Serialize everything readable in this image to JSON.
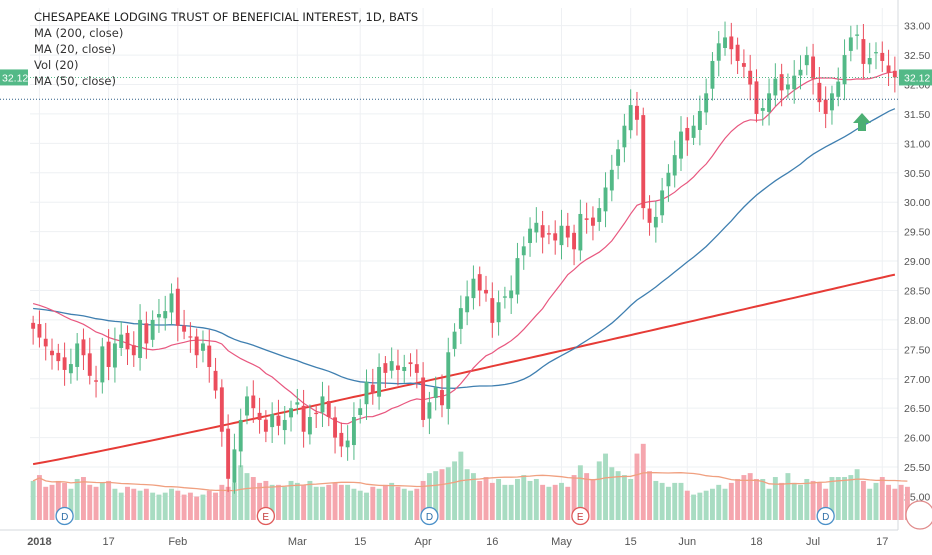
{
  "legend": {
    "title": "CHESAPEAKE LODGING TRUST OF BENEFICIAL INTEREST, 1D, BATS",
    "ma200": "MA (200, close)",
    "ma20": "MA (20, close)",
    "vol": "Vol (20)",
    "ma50": "MA (50, close)"
  },
  "price_tag": "32.12",
  "colors": {
    "up": "#53b987",
    "down": "#eb4d5c",
    "up_vol": "#a8dcc2",
    "down_vol": "#f5a6ae",
    "ma200": "#e63b36",
    "ma20": "#e8577f",
    "ma50": "#3f7fb0",
    "vol_ma": "#f0a080",
    "price_tag": "#53b987",
    "arrow": "#4caf73"
  },
  "chart_data": {
    "type": "candlestick",
    "title": "CHESAPEAKE LODGING TRUST OF BENEFICIAL INTEREST, 1D, BATS",
    "y_ticks": [
      "33.00",
      "32.50",
      "32.00",
      "31.50",
      "31.00",
      "30.50",
      "30.00",
      "29.50",
      "29.00",
      "28.50",
      "28.00",
      "27.50",
      "27.00",
      "26.50",
      "26.00",
      "25.50",
      "25.00"
    ],
    "ylim": [
      24.6,
      33.3
    ],
    "x_labels": [
      "2018",
      "17",
      "Feb",
      "Mar",
      "15",
      "Apr",
      "16",
      "May",
      "15",
      "Jun",
      "18",
      "Jul",
      "17"
    ],
    "x_label_sessions": [
      1,
      12,
      23,
      42,
      52,
      62,
      73,
      84,
      95,
      104,
      115,
      124,
      135
    ],
    "start_date": "2017-12-26",
    "last_price": 32.12,
    "event_markers": [
      {
        "letter": "D",
        "session": 5
      },
      {
        "letter": "E",
        "session": 37
      },
      {
        "letter": "D",
        "session": 63
      },
      {
        "letter": "E",
        "session": 87
      },
      {
        "letter": "D",
        "session": 126
      }
    ],
    "closes": [
      27.85,
      27.7,
      27.55,
      27.4,
      27.3,
      27.15,
      27.25,
      27.6,
      27.4,
      27.05,
      26.95,
      27.55,
      27.2,
      27.6,
      27.75,
      27.5,
      27.4,
      28.0,
      27.6,
      28.0,
      28.1,
      28.15,
      28.45,
      27.9,
      27.8,
      27.7,
      27.4,
      27.6,
      27.2,
      26.8,
      26.1,
      25.3,
      25.8,
      26.3,
      26.7,
      26.5,
      26.3,
      26.1,
      26.4,
      26.2,
      26.3,
      26.5,
      26.6,
      26.1,
      26.35,
      26.4,
      26.7,
      26.35,
      26.0,
      25.85,
      25.95,
      26.35,
      26.5,
      26.95,
      26.75,
      27.2,
      27.1,
      27.3,
      27.15,
      27.2,
      27.25,
      27.1,
      26.3,
      26.6,
      26.85,
      26.55,
      27.45,
      27.8,
      28.2,
      28.4,
      28.7,
      28.5,
      28.45,
      27.95,
      28.3,
      28.4,
      28.5,
      29.05,
      29.25,
      29.55,
      29.65,
      29.4,
      29.45,
      29.35,
      29.6,
      29.4,
      29.2,
      29.8,
      29.7,
      29.6,
      29.9,
      30.25,
      30.55,
      30.9,
      31.3,
      31.65,
      31.4,
      29.9,
      29.65,
      29.75,
      30.2,
      30.5,
      30.8,
      31.2,
      31.05,
      31.3,
      31.55,
      31.85,
      32.4,
      32.7,
      32.8,
      32.6,
      32.4,
      32.3,
      32.0,
      31.5,
      31.6,
      31.85,
      32.1,
      31.9,
      32.0,
      32.15,
      32.25,
      32.5,
      32.1,
      31.7,
      31.5,
      31.85,
      32.05,
      32.5,
      32.8,
      32.85,
      32.35,
      32.45,
      32.55,
      32.4,
      32.2,
      32.12
    ],
    "volume_ylim": [
      0,
      3.2
    ],
    "volumes": [
      1.0,
      1.15,
      0.85,
      0.9,
      1.0,
      0.95,
      0.8,
      1.05,
      1.1,
      0.9,
      0.85,
      0.95,
      1.0,
      0.8,
      0.7,
      0.85,
      0.8,
      0.75,
      0.8,
      0.7,
      0.65,
      0.7,
      0.8,
      0.75,
      0.65,
      0.7,
      0.6,
      0.65,
      0.75,
      0.7,
      0.9,
      0.85,
      0.95,
      1.4,
      1.2,
      1.1,
      0.95,
      1.0,
      0.9,
      0.9,
      0.85,
      1.0,
      0.95,
      0.9,
      1.0,
      0.85,
      0.85,
      0.9,
      0.95,
      0.9,
      0.9,
      0.8,
      0.75,
      0.7,
      0.85,
      0.8,
      0.9,
      0.95,
      0.85,
      0.8,
      0.75,
      0.8,
      1.0,
      1.2,
      1.25,
      1.3,
      1.35,
      1.5,
      1.75,
      1.3,
      1.2,
      1.0,
      1.1,
      0.95,
      1.05,
      0.9,
      0.9,
      1.05,
      1.15,
      1.0,
      1.05,
      0.9,
      0.85,
      0.9,
      0.95,
      0.85,
      1.15,
      1.4,
      1.2,
      1.05,
      1.5,
      1.7,
      1.35,
      1.25,
      1.15,
      1.05,
      1.7,
      1.95,
      1.25,
      1.0,
      0.95,
      0.85,
      0.95,
      0.95,
      0.75,
      0.65,
      0.7,
      0.75,
      0.8,
      0.9,
      0.8,
      0.95,
      1.05,
      1.15,
      1.2,
      1.05,
      1.05,
      0.8,
      1.1,
      0.95,
      1.2,
      0.95,
      0.9,
      1.05,
      1.0,
      0.95,
      0.8,
      1.1,
      1.1,
      1.1,
      1.15,
      1.3,
      1.0,
      0.8,
      0.95,
      1.1,
      0.9,
      0.8,
      0.9,
      0.85
    ]
  }
}
